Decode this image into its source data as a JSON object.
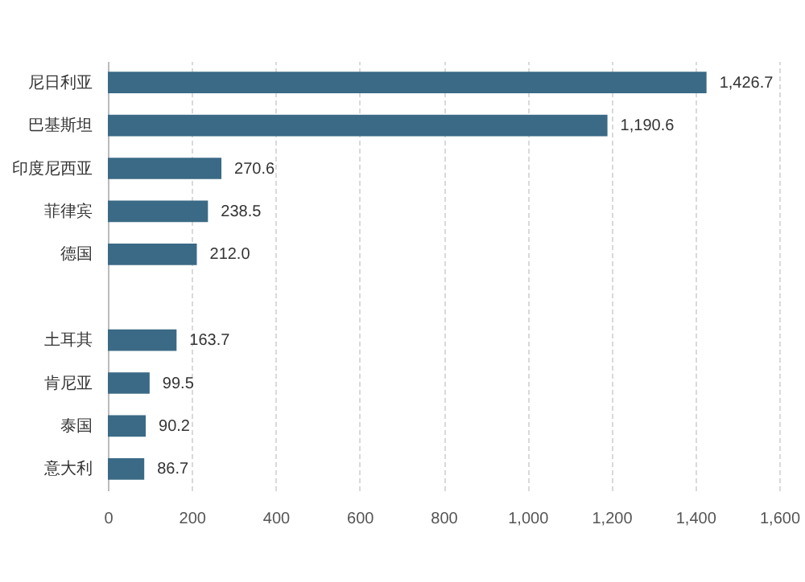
{
  "chart_data": {
    "type": "bar",
    "orientation": "horizontal",
    "categories": [
      "尼日利亚",
      "巴基斯坦",
      "印度尼西亚",
      "菲律宾",
      "德国",
      null,
      "土耳其",
      "肯尼亚",
      "泰国",
      "意大利"
    ],
    "values": [
      1426.7,
      1190.6,
      270.6,
      238.5,
      212.0,
      null,
      163.7,
      99.5,
      90.2,
      86.7
    ],
    "value_labels": [
      "1,426.7",
      "1,190.6",
      "270.6",
      "238.5",
      "212.0",
      null,
      "163.7",
      "99.5",
      "90.2",
      "86.7"
    ],
    "color": "#3a6a85",
    "xlim": [
      0,
      1600
    ],
    "xticks": [
      0,
      200,
      400,
      600,
      800,
      {
        "value": 1000,
        "label": "1,000"
      },
      {
        "value": 1200,
        "label": "1,200"
      },
      {
        "value": 1400,
        "label": "1,400"
      },
      {
        "value": 1600,
        "label": "1,600"
      }
    ],
    "grid": "x"
  }
}
